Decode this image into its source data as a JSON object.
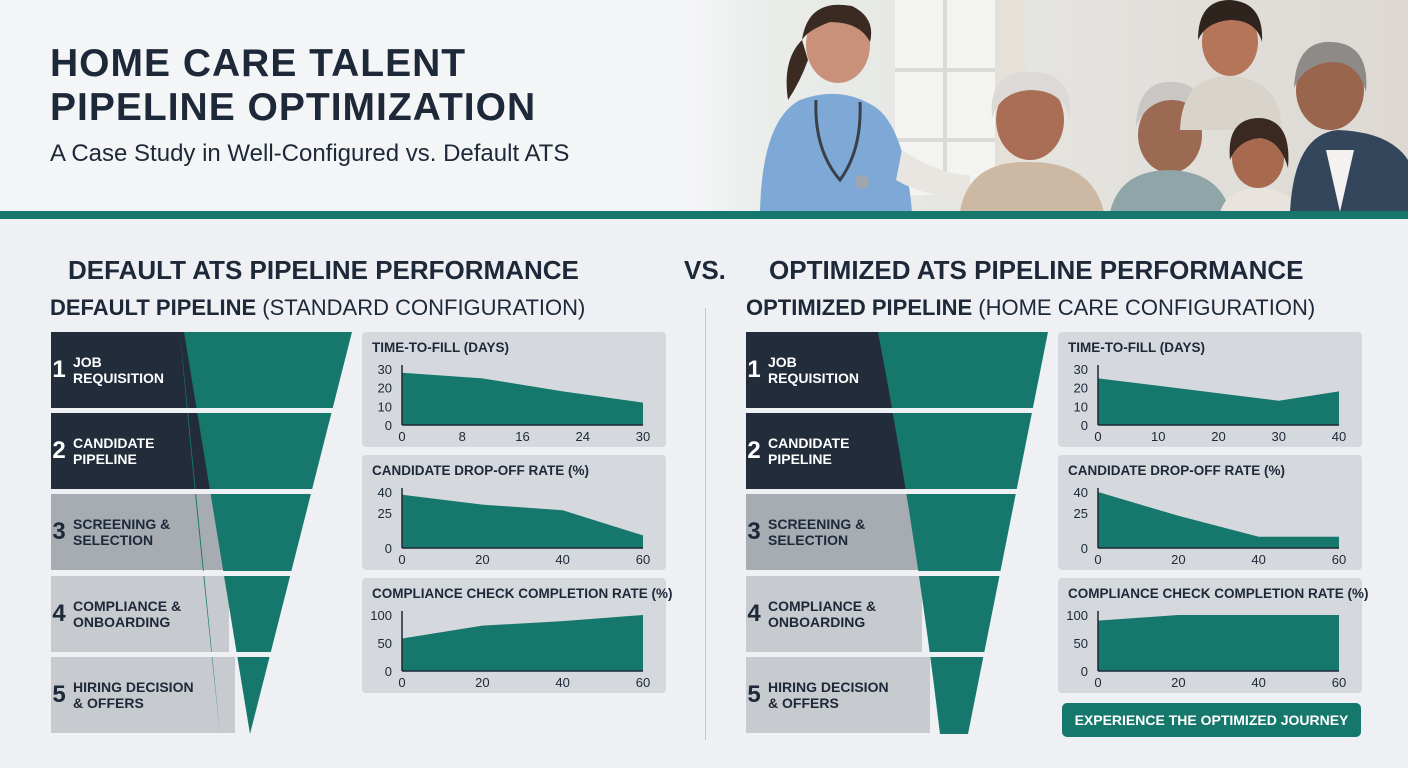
{
  "header": {
    "title_line1": "HOME CARE TALENT",
    "title_line2": "PIPELINE OPTIMIZATION",
    "subtitle": "A Case Study in Well-Configured vs. Default ATS"
  },
  "colors": {
    "teal": "#16776c",
    "navy": "#222c3a",
    "gray": "#a7abb2",
    "light_gray": "#c7cace"
  },
  "vs_label": "VS.",
  "default_panel": {
    "title": "DEFAULT ATS PIPELINE PERFORMANCE",
    "pipeline_name": "DEFAULT PIPELINE",
    "pipeline_config": "(Standard Configuration)"
  },
  "optimized_panel": {
    "title": "OPTIMIZED ATS PIPELINE PERFORMANCE",
    "pipeline_name": "OPTIMIZED PIPELINE",
    "pipeline_config": "(Home Care Configuration)",
    "cta_label": "EXPERIENCE THE OPTIMIZED JOURNEY"
  },
  "stages": [
    {
      "num": "1",
      "label": "JOB\nREQUISITION"
    },
    {
      "num": "2",
      "label": "CANDIDATE\nPIPELINE"
    },
    {
      "num": "3",
      "label": "SCREENING &\nSELECTION"
    },
    {
      "num": "4",
      "label": "COMPLIANCE &\nONBOARDING"
    },
    {
      "num": "5",
      "label": "HIRING DECISION\n& OFFERS"
    }
  ],
  "chart_data": [
    {
      "panel": "default",
      "type": "area",
      "title": "TIME-TO-FILL (DAYS)",
      "x": [
        0,
        10,
        20,
        30
      ],
      "y": [
        28,
        25,
        18,
        12
      ],
      "xlim": [
        0,
        30
      ],
      "ylim": [
        0,
        30
      ],
      "xticks": [
        "0",
        "8",
        "16",
        "24",
        "30"
      ],
      "yticks": [
        0,
        10,
        20,
        30
      ]
    },
    {
      "panel": "default",
      "type": "area",
      "title": "CANDIDATE DROP-OFF RATE (%)",
      "x": [
        0,
        20,
        40,
        60
      ],
      "y": [
        38,
        31,
        27,
        9
      ],
      "xlim": [
        0,
        60
      ],
      "ylim": [
        0,
        40
      ],
      "xticks": [
        "0",
        "20",
        "40",
        "60"
      ],
      "yticks": [
        0,
        25,
        40
      ]
    },
    {
      "panel": "default",
      "type": "area",
      "title": "COMPLIANCE CHECK COMPLETION RATE (%)",
      "x": [
        0,
        20,
        40,
        60
      ],
      "y": [
        58,
        81,
        89,
        100
      ],
      "xlim": [
        0,
        60
      ],
      "ylim": [
        0,
        100
      ],
      "xticks": [
        "0",
        "20",
        "40",
        "60"
      ],
      "yticks": [
        0,
        50,
        100
      ]
    },
    {
      "panel": "optimized",
      "type": "area",
      "title": "TIME-TO-FILL (DAYS)",
      "x": [
        0,
        10,
        20,
        30,
        40
      ],
      "y": [
        25,
        21,
        17,
        13,
        18
      ],
      "xlim": [
        0,
        40
      ],
      "ylim": [
        0,
        30
      ],
      "xticks": [
        "0",
        "10",
        "20",
        "30",
        "40"
      ],
      "yticks": [
        0,
        10,
        20,
        30
      ]
    },
    {
      "panel": "optimized",
      "type": "area",
      "title": "CANDIDATE DROP-OFF RATE (%)",
      "x": [
        0,
        20,
        40,
        60
      ],
      "y": [
        40,
        23,
        8,
        8
      ],
      "xlim": [
        0,
        60
      ],
      "ylim": [
        0,
        40
      ],
      "xticks": [
        "0",
        "20",
        "40",
        "60"
      ],
      "yticks": [
        0,
        25,
        40
      ]
    },
    {
      "panel": "optimized",
      "type": "area",
      "title": "COMPLIANCE CHECK COMPLETION RATE (%)",
      "x": [
        0,
        20,
        40,
        60
      ],
      "y": [
        90,
        100,
        100,
        100
      ],
      "xlim": [
        0,
        60
      ],
      "ylim": [
        0,
        100
      ],
      "xticks": [
        "0",
        "20",
        "40",
        "60"
      ],
      "yticks": [
        0,
        50,
        100
      ]
    }
  ]
}
